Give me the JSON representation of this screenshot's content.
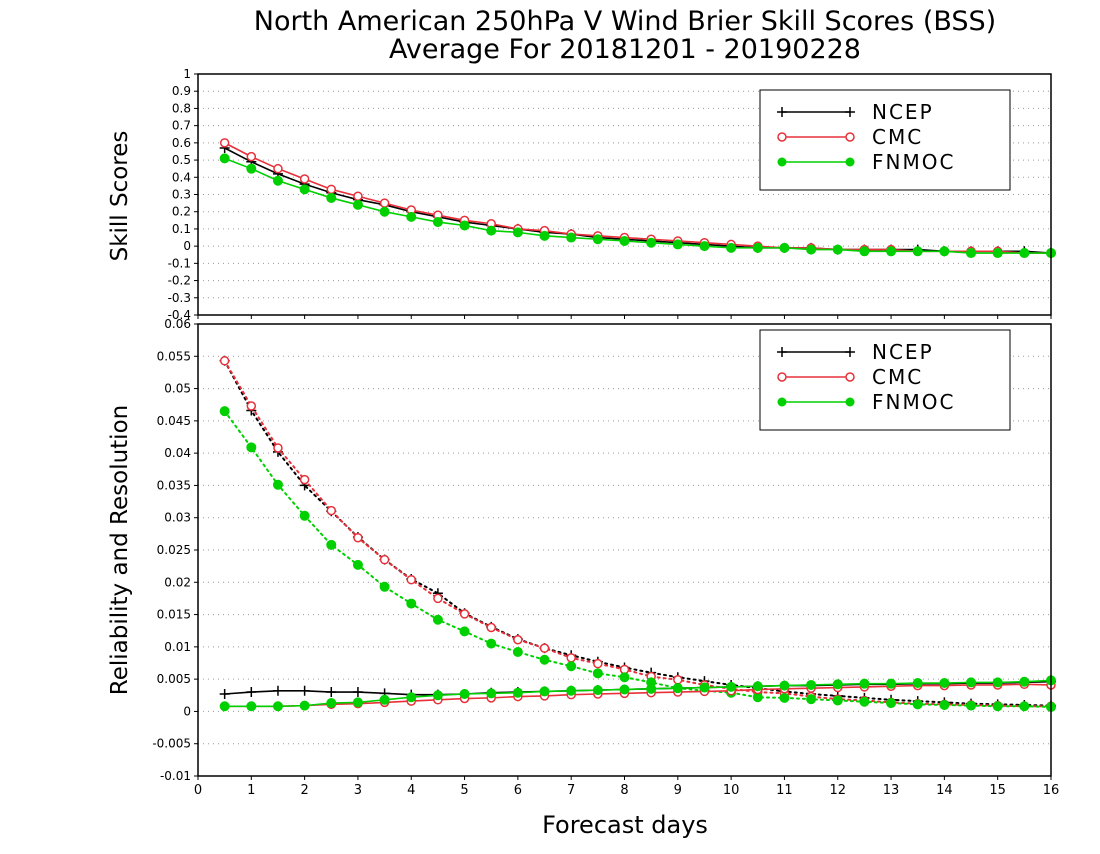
{
  "chart_data": [
    {
      "type": "line",
      "title": "North American 250hPa V Wind Brier Skill Scores (BSS)",
      "subtitle": "Average For 20181201 - 20190228",
      "xlabel": "Forecast days",
      "ylabel": "Skill Scores",
      "xlim": [
        0,
        16
      ],
      "ylim": [
        -0.4,
        1
      ],
      "xticks": [
        0,
        1,
        2,
        3,
        4,
        5,
        6,
        7,
        8,
        9,
        10,
        11,
        12,
        13,
        14,
        15,
        16
      ],
      "yticks": [
        "-0.4",
        "-0.3",
        "-0.2",
        "-0.1",
        "0",
        "0.1",
        "0.2",
        "0.3",
        "0.4",
        "0.5",
        "0.6",
        "0.7",
        "0.8",
        "0.9",
        "1"
      ],
      "grid": true,
      "legend": "top-right",
      "x": [
        0.5,
        1,
        1.5,
        2,
        2.5,
        3,
        3.5,
        4,
        4.5,
        5,
        5.5,
        6,
        6.5,
        7,
        7.5,
        8,
        8.5,
        9,
        9.5,
        10,
        10.5,
        11,
        11.5,
        12,
        12.5,
        13,
        13.5,
        14,
        14.5,
        15,
        15.5,
        16
      ],
      "series": [
        {
          "name": "NCEP",
          "color": "#000000",
          "marker": "plus",
          "values": [
            0.57,
            0.49,
            0.42,
            0.36,
            0.31,
            0.27,
            0.24,
            0.2,
            0.17,
            0.14,
            0.12,
            0.1,
            0.08,
            0.07,
            0.05,
            0.04,
            0.03,
            0.02,
            0.01,
            0.0,
            -0.01,
            -0.01,
            -0.01,
            -0.02,
            -0.02,
            -0.02,
            -0.02,
            -0.03,
            -0.03,
            -0.03,
            -0.03,
            -0.04
          ]
        },
        {
          "name": "CMC",
          "color": "#e8303a",
          "marker": "open-circle",
          "values": [
            0.6,
            0.52,
            0.45,
            0.39,
            0.33,
            0.29,
            0.25,
            0.21,
            0.18,
            0.15,
            0.13,
            0.1,
            0.09,
            0.07,
            0.06,
            0.05,
            0.04,
            0.03,
            0.02,
            0.01,
            0.0,
            -0.01,
            -0.01,
            -0.02,
            -0.02,
            -0.02,
            -0.03,
            -0.03,
            -0.03,
            -0.03,
            -0.04,
            -0.04
          ]
        },
        {
          "name": "FNMOC",
          "color": "#00d000",
          "marker": "filled-circle",
          "values": [
            0.51,
            0.45,
            0.38,
            0.33,
            0.28,
            0.24,
            0.2,
            0.17,
            0.14,
            0.12,
            0.09,
            0.08,
            0.06,
            0.05,
            0.04,
            0.03,
            0.02,
            0.01,
            0.0,
            -0.01,
            -0.01,
            -0.01,
            -0.02,
            -0.02,
            -0.03,
            -0.03,
            -0.03,
            -0.03,
            -0.04,
            -0.04,
            -0.04,
            -0.04
          ]
        }
      ]
    },
    {
      "type": "line",
      "xlabel": "Forecast days",
      "ylabel": "Reliability and Resolution",
      "xlim": [
        0,
        16
      ],
      "ylim": [
        -0.01,
        0.06
      ],
      "xticks": [
        0,
        1,
        2,
        3,
        4,
        5,
        6,
        7,
        8,
        9,
        10,
        11,
        12,
        13,
        14,
        15,
        16
      ],
      "yticks": [
        "-0.01",
        "-0.005",
        "0",
        "0.005",
        "0.01",
        "0.015",
        "0.02",
        "0.025",
        "0.03",
        "0.035",
        "0.04",
        "0.045",
        "0.05",
        "0.055",
        "0.06"
      ],
      "grid": true,
      "legend": "top-right",
      "x": [
        0.5,
        1,
        1.5,
        2,
        2.5,
        3,
        3.5,
        4,
        4.5,
        5,
        5.5,
        6,
        6.5,
        7,
        7.5,
        8,
        8.5,
        9,
        9.5,
        10,
        10.5,
        11,
        11.5,
        12,
        12.5,
        13,
        13.5,
        14,
        14.5,
        15,
        15.5,
        16
      ],
      "series": [
        {
          "name": "NCEP",
          "color": "#000000",
          "marker": "plus",
          "style": "dotted",
          "values": [
            0.0543,
            0.0466,
            0.0402,
            0.035,
            0.031,
            0.027,
            0.0235,
            0.0205,
            0.0183,
            0.0152,
            0.0131,
            0.0112,
            0.0098,
            0.0087,
            0.0077,
            0.0068,
            0.006,
            0.0053,
            0.0047,
            0.0041,
            0.0036,
            0.0031,
            0.0027,
            0.0024,
            0.0021,
            0.0018,
            0.0016,
            0.0014,
            0.0012,
            0.0011,
            0.001,
            0.0009
          ]
        },
        {
          "name": "CMC",
          "color": "#e8303a",
          "marker": "open-circle",
          "style": "dotted",
          "values": [
            0.0543,
            0.0473,
            0.0408,
            0.0359,
            0.0311,
            0.0269,
            0.0235,
            0.0204,
            0.0175,
            0.0151,
            0.013,
            0.0111,
            0.0098,
            0.0083,
            0.0074,
            0.0065,
            0.0054,
            0.0049,
            0.0041,
            0.0035,
            0.003,
            0.0028,
            0.0023,
            0.0019,
            0.0017,
            0.0014,
            0.0012,
            0.0011,
            0.001,
            0.0009,
            0.0008,
            0.0008
          ]
        },
        {
          "name": "FNMOC",
          "color": "#00d000",
          "marker": "filled-circle",
          "style": "dotted",
          "values": [
            0.0465,
            0.0409,
            0.0351,
            0.0303,
            0.0258,
            0.0227,
            0.0193,
            0.0167,
            0.0142,
            0.0124,
            0.0105,
            0.0092,
            0.008,
            0.007,
            0.0059,
            0.0053,
            0.0045,
            0.0036,
            0.0032,
            0.0029,
            0.0022,
            0.0021,
            0.0019,
            0.0017,
            0.0015,
            0.0013,
            0.0011,
            0.001,
            0.0009,
            0.0008,
            0.0008,
            0.0007
          ]
        },
        {
          "name": "NCEP",
          "color": "#000000",
          "marker": "plus",
          "style": "solid",
          "values": [
            0.0027,
            0.003,
            0.0032,
            0.0032,
            0.003,
            0.003,
            0.0028,
            0.0026,
            0.0026,
            0.0027,
            0.0029,
            0.003,
            0.0031,
            0.0032,
            0.0033,
            0.0034,
            0.0035,
            0.0036,
            0.0037,
            0.0038,
            0.0039,
            0.004,
            0.004,
            0.0041,
            0.0042,
            0.0042,
            0.0043,
            0.0043,
            0.0044,
            0.0044,
            0.0045,
            0.0046
          ]
        },
        {
          "name": "CMC",
          "color": "#e8303a",
          "marker": "open-circle",
          "style": "solid",
          "values": [
            0.0008,
            0.0008,
            0.0008,
            0.0009,
            0.0011,
            0.0012,
            0.0014,
            0.0016,
            0.0018,
            0.002,
            0.0021,
            0.0023,
            0.0024,
            0.0026,
            0.0027,
            0.0028,
            0.0029,
            0.003,
            0.0031,
            0.0032,
            0.0034,
            0.0035,
            0.0036,
            0.0037,
            0.0038,
            0.0039,
            0.004,
            0.004,
            0.0041,
            0.0041,
            0.0042,
            0.0041
          ]
        },
        {
          "name": "FNMOC",
          "color": "#00d000",
          "marker": "filled-circle",
          "style": "solid",
          "values": [
            0.0008,
            0.0008,
            0.0008,
            0.0009,
            0.0013,
            0.0014,
            0.0018,
            0.0022,
            0.0025,
            0.0027,
            0.0028,
            0.0029,
            0.0031,
            0.0032,
            0.0033,
            0.0034,
            0.0035,
            0.0036,
            0.0037,
            0.0038,
            0.0039,
            0.004,
            0.0041,
            0.0042,
            0.0043,
            0.0043,
            0.0044,
            0.0044,
            0.0045,
            0.0045,
            0.0046,
            0.0048
          ]
        }
      ]
    }
  ]
}
